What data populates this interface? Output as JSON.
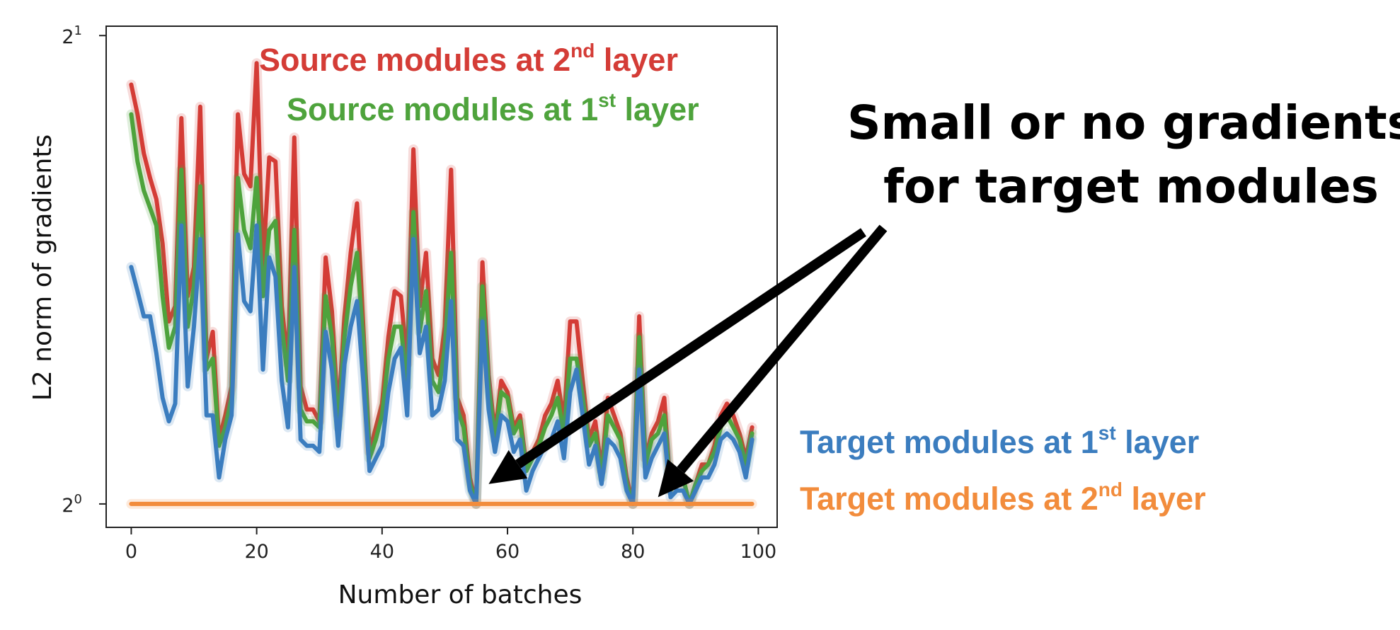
{
  "chart_data": {
    "type": "line",
    "xlabel": "Number of batches",
    "ylabel": "L2 norm of gradients",
    "xlim": [
      -4,
      103
    ],
    "ylim_log2": [
      -0.05,
      1.02
    ],
    "y_scale": "log2",
    "grid": false,
    "x_ticks": [
      "0",
      "20",
      "40",
      "60",
      "80",
      "100"
    ],
    "x_tick_values": [
      0,
      20,
      40,
      60,
      80,
      100
    ],
    "y_ticks": [
      {
        "base": "2",
        "exp": "0",
        "value": 1
      },
      {
        "base": "2",
        "exp": "1",
        "value": 2
      }
    ],
    "x": [
      0,
      1,
      2,
      3,
      4,
      5,
      6,
      7,
      8,
      9,
      10,
      11,
      12,
      13,
      14,
      15,
      16,
      17,
      18,
      19,
      20,
      21,
      22,
      23,
      24,
      25,
      26,
      27,
      28,
      29,
      30,
      31,
      32,
      33,
      34,
      35,
      36,
      37,
      38,
      39,
      40,
      41,
      42,
      43,
      44,
      45,
      46,
      47,
      48,
      49,
      50,
      51,
      52,
      53,
      54,
      55,
      56,
      57,
      58,
      59,
      60,
      61,
      62,
      63,
      64,
      65,
      66,
      67,
      68,
      69,
      70,
      71,
      72,
      73,
      74,
      75,
      76,
      77,
      78,
      79,
      80,
      81,
      82,
      83,
      84,
      85,
      86,
      87,
      88,
      89,
      90,
      91,
      92,
      93,
      94,
      95,
      96,
      97,
      98,
      99
    ],
    "series": [
      {
        "name": "Source modules at 2nd layer",
        "label_parts": [
          "Source modules at 2",
          "nd",
          " layer"
        ],
        "color": "#d43c36",
        "values": [
          1.86,
          1.78,
          1.68,
          1.62,
          1.57,
          1.47,
          1.31,
          1.34,
          1.77,
          1.36,
          1.42,
          1.8,
          1.24,
          1.29,
          1.1,
          1.14,
          1.19,
          1.78,
          1.63,
          1.6,
          1.92,
          1.42,
          1.67,
          1.66,
          1.34,
          1.23,
          1.72,
          1.19,
          1.15,
          1.15,
          1.13,
          1.44,
          1.33,
          1.14,
          1.32,
          1.45,
          1.56,
          1.3,
          1.08,
          1.12,
          1.16,
          1.28,
          1.37,
          1.36,
          1.23,
          1.69,
          1.34,
          1.45,
          1.24,
          1.21,
          1.3,
          1.64,
          1.17,
          1.14,
          1.04,
          1.0,
          1.43,
          1.21,
          1.11,
          1.2,
          1.18,
          1.12,
          1.14,
          1.06,
          1.08,
          1.1,
          1.14,
          1.16,
          1.2,
          1.13,
          1.31,
          1.31,
          1.2,
          1.1,
          1.13,
          1.05,
          1.17,
          1.14,
          1.11,
          1.04,
          1.0,
          1.32,
          1.07,
          1.11,
          1.13,
          1.17,
          1.02,
          1.04,
          1.04,
          1.0,
          1.03,
          1.06,
          1.06,
          1.09,
          1.14,
          1.16,
          1.14,
          1.11,
          1.07,
          1.12
        ]
      },
      {
        "name": "Source modules at 1st layer",
        "label_parts": [
          "Source modules at 1",
          "st",
          " layer"
        ],
        "color": "#4ea33c",
        "values": [
          1.78,
          1.66,
          1.59,
          1.55,
          1.51,
          1.36,
          1.26,
          1.3,
          1.64,
          1.3,
          1.38,
          1.6,
          1.22,
          1.24,
          1.09,
          1.12,
          1.17,
          1.62,
          1.5,
          1.46,
          1.62,
          1.36,
          1.5,
          1.52,
          1.3,
          1.2,
          1.5,
          1.15,
          1.13,
          1.13,
          1.12,
          1.36,
          1.28,
          1.12,
          1.28,
          1.38,
          1.45,
          1.27,
          1.07,
          1.1,
          1.14,
          1.24,
          1.3,
          1.3,
          1.19,
          1.54,
          1.29,
          1.37,
          1.2,
          1.18,
          1.26,
          1.45,
          1.15,
          1.12,
          1.03,
          1.0,
          1.38,
          1.19,
          1.1,
          1.18,
          1.17,
          1.11,
          1.13,
          1.05,
          1.07,
          1.09,
          1.12,
          1.14,
          1.17,
          1.11,
          1.24,
          1.24,
          1.17,
          1.09,
          1.11,
          1.04,
          1.14,
          1.12,
          1.1,
          1.03,
          1.0,
          1.28,
          1.06,
          1.1,
          1.11,
          1.14,
          1.02,
          1.04,
          1.04,
          1.0,
          1.03,
          1.05,
          1.06,
          1.08,
          1.12,
          1.14,
          1.12,
          1.1,
          1.06,
          1.11
        ]
      },
      {
        "name": "Target modules at 1st layer",
        "label_parts": [
          "Target modules at 1",
          "st",
          " layer"
        ],
        "color": "#3b7dbf",
        "values": [
          1.42,
          1.37,
          1.32,
          1.32,
          1.25,
          1.17,
          1.13,
          1.16,
          1.51,
          1.19,
          1.3,
          1.48,
          1.14,
          1.14,
          1.04,
          1.1,
          1.14,
          1.49,
          1.35,
          1.33,
          1.51,
          1.22,
          1.44,
          1.4,
          1.2,
          1.12,
          1.42,
          1.1,
          1.09,
          1.09,
          1.08,
          1.29,
          1.22,
          1.09,
          1.23,
          1.3,
          1.35,
          1.2,
          1.05,
          1.07,
          1.09,
          1.18,
          1.24,
          1.26,
          1.14,
          1.48,
          1.25,
          1.3,
          1.14,
          1.15,
          1.2,
          1.35,
          1.1,
          1.09,
          1.02,
          1.0,
          1.31,
          1.15,
          1.08,
          1.14,
          1.13,
          1.08,
          1.1,
          1.02,
          1.05,
          1.07,
          1.09,
          1.1,
          1.13,
          1.07,
          1.18,
          1.22,
          1.14,
          1.06,
          1.09,
          1.03,
          1.1,
          1.09,
          1.07,
          1.02,
          1.0,
          1.22,
          1.04,
          1.07,
          1.09,
          1.11,
          1.01,
          1.02,
          1.02,
          1.0,
          1.02,
          1.04,
          1.04,
          1.06,
          1.1,
          1.11,
          1.1,
          1.08,
          1.04,
          1.1
        ]
      },
      {
        "name": "Target modules at 2nd layer",
        "label_parts": [
          "Target modules at 2",
          "nd",
          " layer"
        ],
        "color": "#f28c3c",
        "values": [
          1,
          1,
          1,
          1,
          1,
          1,
          1,
          1,
          1,
          1,
          1,
          1,
          1,
          1,
          1,
          1,
          1,
          1,
          1,
          1,
          1,
          1,
          1,
          1,
          1,
          1,
          1,
          1,
          1,
          1,
          1,
          1,
          1,
          1,
          1,
          1,
          1,
          1,
          1,
          1,
          1,
          1,
          1,
          1,
          1,
          1,
          1,
          1,
          1,
          1,
          1,
          1,
          1,
          1,
          1,
          1,
          1,
          1,
          1,
          1,
          1,
          1,
          1,
          1,
          1,
          1,
          1,
          1,
          1,
          1,
          1,
          1,
          1,
          1,
          1,
          1,
          1,
          1,
          1,
          1,
          1,
          1,
          1,
          1,
          1,
          1,
          1,
          1,
          1,
          1,
          1,
          1,
          1,
          1,
          1,
          1,
          1,
          1,
          1,
          1
        ]
      }
    ],
    "annotation": {
      "lines": [
        "Small or no gradients",
        "for target modules"
      ],
      "arrow_targets": [
        {
          "x": 57,
          "y": 1.03
        },
        {
          "x": 84,
          "y": 1.01
        }
      ]
    }
  }
}
